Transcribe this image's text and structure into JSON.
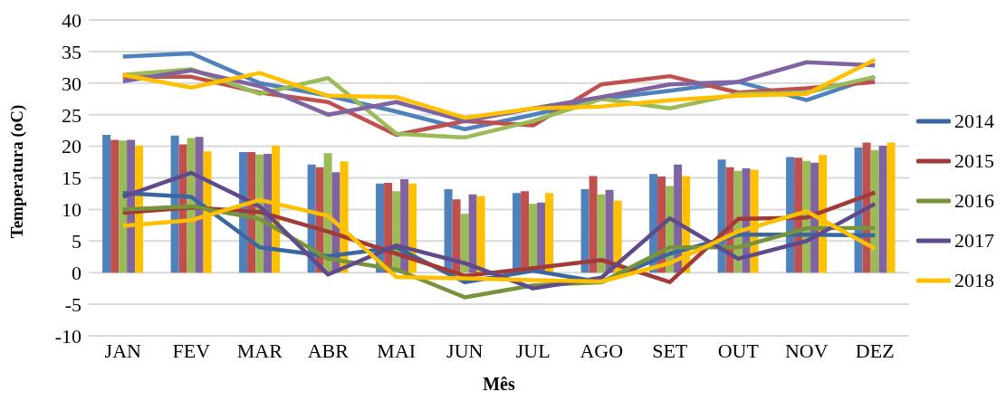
{
  "chart_data": {
    "type": "bar",
    "xlabel": "Mês",
    "ylabel": "Temperatura (oC)",
    "categories": [
      "JAN",
      "FEV",
      "MAR",
      "ABR",
      "MAI",
      "JUN",
      "JUL",
      "AGO",
      "SET",
      "OUT",
      "NOV",
      "DEZ"
    ],
    "ylim": [
      -10,
      40
    ],
    "yticks": [
      -10,
      -5,
      0,
      5,
      10,
      15,
      20,
      25,
      30,
      35,
      40
    ],
    "grid": "y",
    "legend": "right",
    "marker": "none",
    "line_style": "solid",
    "series": [
      {
        "color": "#4f81bd",
        "values": [
          21.8,
          21.7,
          19.1,
          17.1,
          14.1,
          13.2,
          12.6,
          13.2,
          15.6,
          17.9,
          18.3,
          19.8
        ]
      },
      {
        "color": "#c0504d",
        "values": [
          21.0,
          20.3,
          19.1,
          16.7,
          14.2,
          11.6,
          12.9,
          15.3,
          15.2,
          16.7,
          18.2,
          20.6
        ]
      },
      {
        "color": "#9bbb59",
        "values": [
          20.9,
          21.3,
          18.7,
          18.9,
          12.9,
          9.3,
          10.9,
          12.4,
          13.7,
          16.1,
          17.7,
          19.4
        ]
      },
      {
        "color": "#8064a2",
        "values": [
          21.0,
          21.5,
          18.8,
          15.9,
          14.8,
          12.4,
          11.1,
          13.1,
          17.1,
          16.5,
          17.4,
          20.1
        ]
      },
      {
        "color": "#ffc000",
        "values": [
          20.1,
          19.2,
          20.1,
          17.6,
          14.1,
          12.1,
          12.6,
          11.4,
          15.3,
          16.3,
          18.6,
          20.6
        ]
      },
      {
        "type": "line",
        "color": "#4f81bd",
        "values": [
          34.2,
          34.7,
          30.0,
          28.0,
          25.5,
          22.7,
          25.0,
          27.5,
          28.8,
          30.2,
          27.3,
          31.0
        ]
      },
      {
        "type": "line",
        "color": "#c0504d",
        "values": [
          31.0,
          31.0,
          28.5,
          27.0,
          21.8,
          24.0,
          23.3,
          29.8,
          31.1,
          28.5,
          29.2,
          30.2
        ]
      },
      {
        "type": "line",
        "color": "#9bbb59",
        "values": [
          31.3,
          32.2,
          28.3,
          30.8,
          22.0,
          21.4,
          24.0,
          27.5,
          26.0,
          28.3,
          28.5,
          31.0
        ]
      },
      {
        "type": "line",
        "color": "#8064a2",
        "values": [
          30.3,
          32.0,
          29.5,
          25.0,
          27.0,
          24.0,
          26.0,
          27.8,
          29.8,
          30.2,
          33.3,
          32.8
        ]
      },
      {
        "type": "line",
        "color": "#ffc000",
        "values": [
          31.3,
          29.3,
          31.6,
          28.0,
          27.8,
          24.5,
          26.0,
          26.3,
          27.3,
          28.0,
          28.3,
          33.7
        ]
      },
      {
        "type": "line",
        "name": "2014",
        "color": "#3a67a0",
        "values": [
          12.6,
          12.0,
          4.0,
          2.6,
          4.0,
          -1.5,
          0.3,
          -1.5,
          3.0,
          6.0,
          6.0,
          5.9
        ]
      },
      {
        "type": "line",
        "name": "2015",
        "color": "#a13a38",
        "values": [
          9.5,
          10.3,
          9.6,
          6.5,
          3.0,
          -0.5,
          0.7,
          2.0,
          -1.5,
          8.5,
          8.7,
          12.7
        ]
      },
      {
        "type": "line",
        "name": "2016",
        "color": "#77933c",
        "values": [
          10.0,
          10.5,
          8.5,
          2.2,
          0.5,
          -3.9,
          -2.0,
          -1.5,
          4.0,
          4.0,
          7.0,
          7.1
        ]
      },
      {
        "type": "line",
        "name": "2017",
        "color": "#5f4b8b",
        "values": [
          12.0,
          15.8,
          10.5,
          -0.3,
          4.3,
          1.5,
          -2.5,
          -0.8,
          8.6,
          2.2,
          5.0,
          10.9
        ]
      },
      {
        "type": "line",
        "name": "2018",
        "color": "#ffc000",
        "values": [
          7.4,
          8.3,
          11.5,
          9.0,
          -0.7,
          -0.9,
          -1.2,
          -1.4,
          1.5,
          6.5,
          9.7,
          3.8
        ]
      }
    ]
  }
}
